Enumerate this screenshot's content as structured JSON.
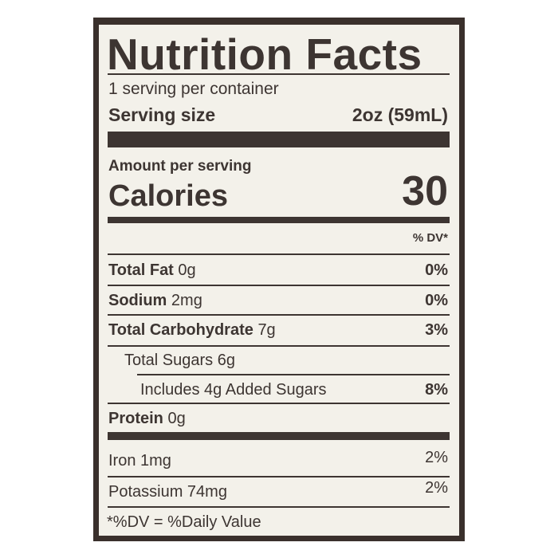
{
  "title": "Nutrition Facts",
  "servings_per_container": "1 serving per container",
  "serving_size": {
    "label": "Serving size",
    "value": "2oz (59mL)"
  },
  "amount_per_serving": "Amount per serving",
  "calories": {
    "label": "Calories",
    "value": "30"
  },
  "dv_header": "% DV*",
  "nutrients": [
    {
      "name": "Total Fat",
      "amount": "0g",
      "dv": "0%"
    },
    {
      "name": "Sodium",
      "amount": "2mg",
      "dv": "0%"
    },
    {
      "name": "Total Carbohydrate",
      "amount": "7g",
      "dv": "3%"
    },
    {
      "name": "Total Sugars 6g",
      "amount": "",
      "dv": ""
    },
    {
      "name": "Includes 4g Added Sugars",
      "amount": "",
      "dv": "8%"
    },
    {
      "name": "Protein",
      "amount": "0g",
      "dv": ""
    }
  ],
  "minerals": [
    {
      "name": "Iron 1mg",
      "dv": "2%"
    },
    {
      "name": "Potassium 74mg",
      "dv": "2%"
    }
  ],
  "footnote": "*%DV = %Daily Value"
}
